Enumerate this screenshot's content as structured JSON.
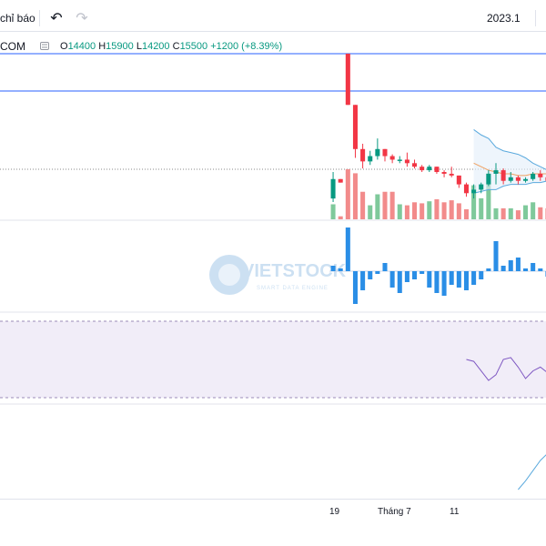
{
  "toolbar": {
    "indicators_label": "chỉ báo",
    "undo_icon": "undo-icon",
    "redo_icon": "redo-icon",
    "range_label": "2023.1"
  },
  "legend": {
    "symbol": "COM",
    "open_key": "O",
    "open": "14400",
    "high_key": "H",
    "high": "15900",
    "low_key": "L",
    "low": "14200",
    "close_key": "C",
    "close": "15500",
    "change": "+1200 (+8.39%)",
    "eye_icon": "eye-icon"
  },
  "watermark": {
    "brand": "VIETSTOCK",
    "tagline": "SMART DATA ENGINE"
  },
  "colors": {
    "up": "#089981",
    "down": "#f23645",
    "vol_up": "#7fc99b",
    "vol_down": "#f28b8b",
    "hist": "#2a8ee6",
    "band": "#5aa9dd",
    "mid": "#f0a060",
    "rsi": "#7e57c2",
    "hline": "#2962ff",
    "last_green": "#089981"
  },
  "xaxis": {
    "labels": [
      "19",
      "Tháng 7",
      "11"
    ]
  },
  "chart_data": {
    "type": "candlestick",
    "candles": [
      {
        "o": 14400,
        "h": 15900,
        "l": 14200,
        "c": 15500
      },
      {
        "o": 15500,
        "h": 15500,
        "l": 15300,
        "c": 15300
      },
      {
        "o": 22600,
        "h": 22600,
        "l": 19700,
        "c": 19700
      },
      {
        "o": 19700,
        "h": 19700,
        "l": 16700,
        "c": 17200
      },
      {
        "o": 17200,
        "h": 17500,
        "l": 16100,
        "c": 16500
      },
      {
        "o": 16500,
        "h": 17100,
        "l": 16300,
        "c": 16800
      },
      {
        "o": 16800,
        "h": 17800,
        "l": 16600,
        "c": 17200
      },
      {
        "o": 17200,
        "h": 17200,
        "l": 16500,
        "c": 16800
      },
      {
        "o": 16800,
        "h": 16900,
        "l": 16400,
        "c": 16600
      },
      {
        "o": 16600,
        "h": 16800,
        "l": 16400,
        "c": 16600
      },
      {
        "o": 16600,
        "h": 17000,
        "l": 16200,
        "c": 16400
      },
      {
        "o": 16400,
        "h": 16600,
        "l": 16100,
        "c": 16200
      },
      {
        "o": 16200,
        "h": 16300,
        "l": 15900,
        "c": 16000
      },
      {
        "o": 16000,
        "h": 16300,
        "l": 15900,
        "c": 16200
      },
      {
        "o": 16200,
        "h": 16200,
        "l": 15800,
        "c": 15900
      },
      {
        "o": 15900,
        "h": 16000,
        "l": 15600,
        "c": 15800
      },
      {
        "o": 15800,
        "h": 16200,
        "l": 15600,
        "c": 15700
      },
      {
        "o": 15700,
        "h": 15700,
        "l": 15000,
        "c": 15200
      },
      {
        "o": 15200,
        "h": 15300,
        "l": 14500,
        "c": 14700
      },
      {
        "o": 14700,
        "h": 15200,
        "l": 14400,
        "c": 14900
      },
      {
        "o": 14900,
        "h": 15300,
        "l": 14700,
        "c": 15200
      },
      {
        "o": 15200,
        "h": 16000,
        "l": 15100,
        "c": 15800
      },
      {
        "o": 15800,
        "h": 16400,
        "l": 15200,
        "c": 16000
      },
      {
        "o": 16000,
        "h": 16100,
        "l": 15200,
        "c": 15400
      },
      {
        "o": 15400,
        "h": 15900,
        "l": 15300,
        "c": 15600
      },
      {
        "o": 15600,
        "h": 15700,
        "l": 15200,
        "c": 15400
      },
      {
        "o": 15400,
        "h": 15600,
        "l": 15300,
        "c": 15500
      },
      {
        "o": 15500,
        "h": 15900,
        "l": 15400,
        "c": 15800
      },
      {
        "o": 15800,
        "h": 16000,
        "l": 15400,
        "c": 15600
      },
      {
        "o": 15600,
        "h": 15700,
        "l": 15300,
        "c": 15400
      }
    ],
    "volume": [
      30,
      6,
      100,
      92,
      55,
      28,
      50,
      55,
      55,
      30,
      28,
      34,
      32,
      36,
      40,
      34,
      38,
      32,
      20,
      68,
      42,
      92,
      22,
      22,
      22,
      18,
      28,
      34,
      24,
      22
    ],
    "histogram": [
      2,
      1,
      16,
      -12,
      -7,
      -3,
      -1,
      3,
      -6,
      -8,
      -4,
      -3,
      -1,
      -6,
      -8,
      -9,
      -5,
      -6,
      -7,
      -5,
      -3,
      1,
      11,
      2,
      4,
      5,
      1,
      3,
      1,
      -2
    ],
    "band_upper": [
      null,
      null,
      null,
      null,
      null,
      null,
      null,
      null,
      null,
      null,
      null,
      null,
      null,
      null,
      null,
      null,
      null,
      null,
      null,
      18300,
      18000,
      17800,
      17300,
      17100,
      17000,
      16900,
      16700,
      16400,
      16200,
      16000
    ],
    "band_mid": [
      null,
      null,
      null,
      null,
      null,
      null,
      null,
      null,
      null,
      null,
      null,
      null,
      null,
      null,
      null,
      null,
      null,
      null,
      null,
      16400,
      16200,
      16000,
      15900,
      15800,
      15800,
      15700,
      15700,
      15800,
      15800,
      15800
    ],
    "band_lower": [
      null,
      null,
      null,
      null,
      null,
      null,
      null,
      null,
      null,
      null,
      null,
      null,
      null,
      null,
      null,
      null,
      null,
      null,
      null,
      14700,
      14800,
      14900,
      14900,
      15100,
      15200,
      15200,
      15200,
      15300,
      15300,
      15400
    ],
    "rsi": [
      null,
      null,
      null,
      null,
      null,
      null,
      null,
      null,
      null,
      null,
      null,
      null,
      null,
      null,
      null,
      null,
      null,
      null,
      50,
      49,
      44,
      39,
      42,
      50,
      51,
      46,
      40,
      44,
      46,
      43
    ],
    "stoch": [
      null,
      null,
      null,
      null,
      null,
      null,
      null,
      null,
      null,
      null,
      null,
      null,
      null,
      null,
      null,
      null,
      null,
      null,
      null,
      null,
      null,
      null,
      null,
      null,
      null,
      10,
      22,
      36,
      50,
      60
    ]
  }
}
